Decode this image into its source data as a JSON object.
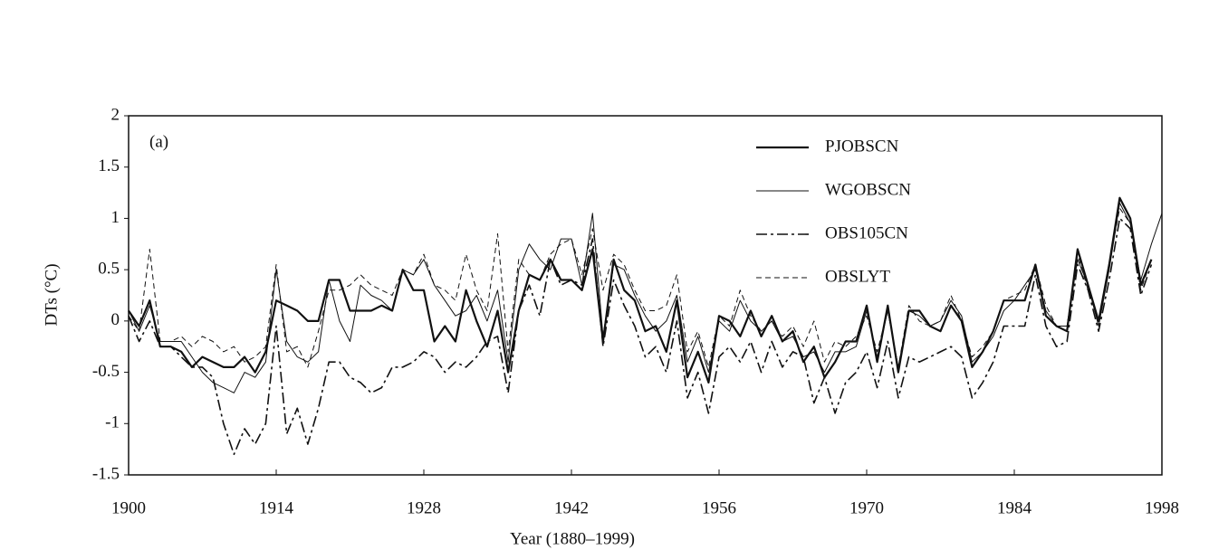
{
  "chart_data": {
    "type": "line",
    "annotation": "(a)",
    "xlabel": "Year (1880–1999)",
    "ylabel": "DTs (°C)",
    "x": [
      1900,
      1901,
      1902,
      1903,
      1904,
      1905,
      1906,
      1907,
      1908,
      1909,
      1910,
      1911,
      1912,
      1913,
      1914,
      1915,
      1916,
      1917,
      1918,
      1919,
      1920,
      1921,
      1922,
      1923,
      1924,
      1925,
      1926,
      1927,
      1928,
      1929,
      1930,
      1931,
      1932,
      1933,
      1934,
      1935,
      1936,
      1937,
      1938,
      1939,
      1940,
      1941,
      1942,
      1943,
      1944,
      1945,
      1946,
      1947,
      1948,
      1949,
      1950,
      1951,
      1952,
      1953,
      1954,
      1955,
      1956,
      1957,
      1958,
      1959,
      1960,
      1961,
      1962,
      1963,
      1964,
      1965,
      1966,
      1967,
      1968,
      1969,
      1970,
      1971,
      1972,
      1973,
      1974,
      1975,
      1976,
      1977,
      1978,
      1979,
      1980,
      1981,
      1982,
      1983,
      1984,
      1985,
      1986,
      1987,
      1988,
      1989,
      1990,
      1991,
      1992,
      1993,
      1994,
      1995,
      1996,
      1997,
      1998
    ],
    "series": [
      {
        "name": "PJOBSCN",
        "color": "#111111",
        "linestyle": "solid",
        "linewidth": 2.2,
        "values": [
          0.1,
          -0.05,
          0.2,
          -0.25,
          -0.25,
          -0.3,
          -0.45,
          -0.35,
          -0.4,
          -0.45,
          -0.45,
          -0.35,
          -0.5,
          -0.3,
          0.2,
          0.15,
          0.1,
          0,
          0,
          0.4,
          0.4,
          0.1,
          0.1,
          0.1,
          0.15,
          0.1,
          0.5,
          0.3,
          0.3,
          -0.2,
          -0.05,
          -0.2,
          0.3,
          0,
          -0.25,
          0.1,
          -0.5,
          0.1,
          0.45,
          0.4,
          0.6,
          0.4,
          0.4,
          0.3,
          0.7,
          -0.2,
          0.6,
          0.3,
          0.2,
          -0.1,
          -0.05,
          -0.3,
          0.2,
          -0.55,
          -0.3,
          -0.6,
          0.05,
          0,
          -0.15,
          0.1,
          -0.15,
          0.05,
          -0.2,
          -0.1,
          -0.4,
          -0.25,
          -0.55,
          -0.4,
          -0.2,
          -0.2,
          0.15,
          -0.4,
          0.15,
          -0.5,
          0.1,
          0.1,
          -0.05,
          -0.1,
          0.15,
          0,
          -0.45,
          -0.3,
          -0.1,
          0.2,
          0.2,
          0.2,
          0.55,
          0.05,
          -0.05,
          -0.1,
          0.7,
          0.35,
          0,
          0.55,
          1.2,
          1.0,
          0.35,
          0.6,
          null
        ]
      },
      {
        "name": "WGOBSCN",
        "color": "#111111",
        "linestyle": "solid",
        "linewidth": 1,
        "values": [
          0.1,
          -0.1,
          0.15,
          -0.2,
          -0.2,
          -0.2,
          -0.35,
          -0.5,
          -0.6,
          -0.65,
          -0.7,
          -0.5,
          -0.55,
          -0.4,
          0.5,
          -0.2,
          -0.35,
          -0.4,
          -0.3,
          0.4,
          0.0,
          -0.2,
          0.35,
          0.25,
          0.2,
          0.1,
          0.5,
          0.45,
          0.6,
          0.35,
          0.2,
          0.05,
          0.1,
          0.25,
          0.0,
          0.3,
          -0.4,
          0.5,
          0.75,
          0.6,
          0.5,
          0.8,
          0.8,
          0.35,
          1.05,
          -0.15,
          0.55,
          0.5,
          0.25,
          0.05,
          -0.1,
          0.0,
          0.25,
          -0.4,
          -0.15,
          -0.5,
          0.0,
          -0.1,
          0.2,
          0.0,
          -0.1,
          0.0,
          -0.2,
          -0.15,
          -0.35,
          -0.3,
          -0.5,
          -0.3,
          -0.3,
          -0.25,
          0.1,
          -0.35,
          0.1,
          -0.45,
          0.1,
          0.05,
          -0.05,
          0.0,
          0.2,
          0.05,
          -0.4,
          -0.3,
          -0.15,
          0.1,
          0.2,
          0.35,
          0.5,
          0.1,
          -0.05,
          -0.05,
          0.6,
          0.35,
          -0.05,
          0.5,
          1.15,
          0.95,
          0.4,
          0.75,
          1.05
        ]
      },
      {
        "name": "OBS105CN",
        "color": "#111111",
        "linestyle": "dashdot",
        "linewidth": 1.6,
        "values": [
          0.05,
          -0.2,
          0.0,
          -0.25,
          -0.25,
          -0.35,
          -0.45,
          -0.45,
          -0.55,
          -1.0,
          -1.3,
          -1.05,
          -1.2,
          -1.0,
          -0.05,
          -1.1,
          -0.85,
          -1.2,
          -0.85,
          -0.4,
          -0.4,
          -0.55,
          -0.6,
          -0.7,
          -0.65,
          -0.45,
          -0.45,
          -0.4,
          -0.3,
          -0.35,
          -0.5,
          -0.4,
          -0.45,
          -0.35,
          -0.2,
          -0.15,
          -0.7,
          0.1,
          0.35,
          0.05,
          0.6,
          0.35,
          0.4,
          0.35,
          0.8,
          -0.25,
          0.4,
          0.15,
          -0.05,
          -0.35,
          -0.25,
          -0.5,
          0.0,
          -0.75,
          -0.5,
          -0.9,
          -0.35,
          -0.25,
          -0.4,
          -0.2,
          -0.5,
          -0.2,
          -0.45,
          -0.3,
          -0.35,
          -0.8,
          -0.55,
          -0.9,
          -0.6,
          -0.5,
          -0.3,
          -0.65,
          -0.2,
          -0.75,
          -0.35,
          -0.4,
          -0.35,
          -0.3,
          -0.25,
          -0.35,
          -0.75,
          -0.6,
          -0.4,
          -0.05,
          -0.05,
          -0.05,
          0.45,
          -0.05,
          -0.25,
          -0.2,
          0.55,
          0.3,
          -0.1,
          0.4,
          1.0,
          0.9,
          0.25,
          0.55,
          null
        ]
      },
      {
        "name": "OBSLYT",
        "color": "#111111",
        "linestyle": "dashed",
        "linewidth": 1,
        "values": [
          0.05,
          -0.1,
          0.7,
          -0.2,
          -0.2,
          -0.15,
          -0.25,
          -0.15,
          -0.2,
          -0.3,
          -0.25,
          -0.4,
          -0.35,
          -0.25,
          0.55,
          -0.3,
          -0.25,
          -0.45,
          -0.1,
          0.3,
          0.3,
          0.35,
          0.45,
          0.35,
          0.3,
          0.25,
          0.5,
          0.45,
          0.65,
          0.35,
          0.3,
          0.2,
          0.65,
          0.3,
          0.1,
          0.85,
          -0.3,
          0.6,
          0.45,
          0.4,
          0.65,
          0.75,
          0.8,
          0.45,
          0.9,
          0.3,
          0.65,
          0.55,
          0.3,
          0.1,
          0.1,
          0.15,
          0.45,
          -0.3,
          -0.1,
          -0.45,
          0.05,
          -0.05,
          0.3,
          0.05,
          -0.1,
          0.0,
          -0.15,
          -0.05,
          -0.25,
          0.0,
          -0.4,
          -0.2,
          -0.25,
          -0.15,
          0.05,
          -0.3,
          0.1,
          -0.45,
          0.15,
          0.0,
          -0.05,
          0.0,
          0.25,
          0.0,
          -0.35,
          -0.25,
          -0.1,
          0.2,
          0.25,
          0.3,
          0.55,
          0.15,
          -0.05,
          -0.05,
          0.65,
          0.3,
          0.0,
          0.55,
          1.1,
          0.95,
          0.3,
          0.6,
          null
        ]
      }
    ],
    "xlim": [
      1900,
      1998
    ],
    "xticks": [
      1900,
      1914,
      1928,
      1942,
      1956,
      1970,
      1984,
      1998
    ],
    "ylim": [
      -1.5,
      2
    ],
    "yticks": [
      -1.5,
      -1,
      -0.5,
      0,
      0.5,
      1,
      1.5,
      2
    ],
    "grid": false,
    "legend": "upper right"
  }
}
